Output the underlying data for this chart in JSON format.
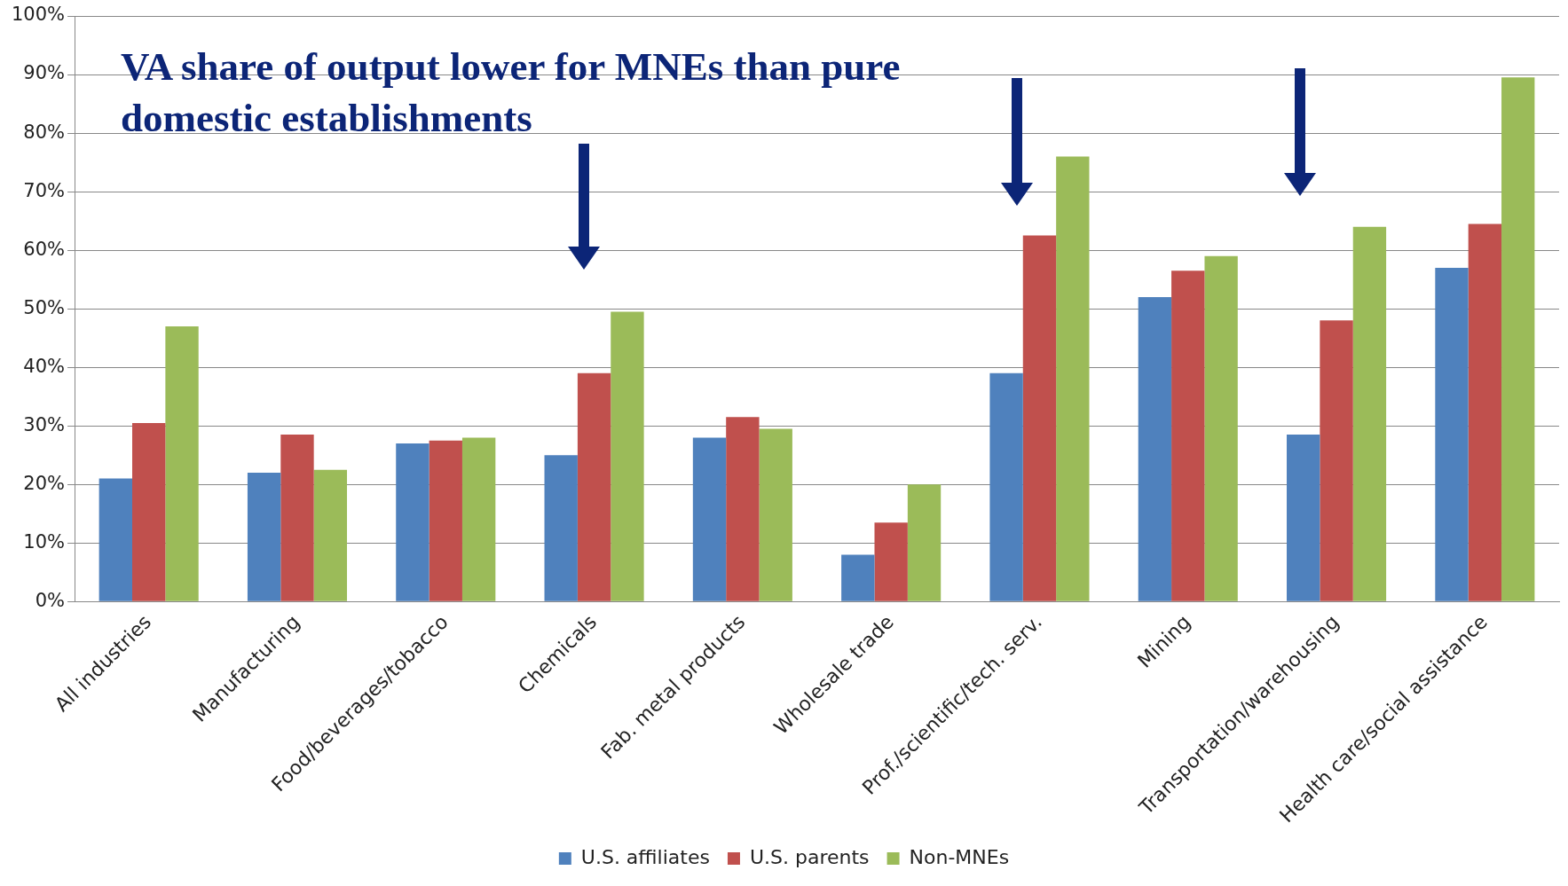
{
  "chart_data": {
    "type": "bar",
    "title": "VA share of output lower for MNEs than pure domestic establishments",
    "categories": [
      "All industries",
      "Manufacturing",
      "Food/beverages/tobacco",
      "Chemicals",
      "Fab. metal products",
      "Wholesale trade",
      "Prof./scientific/tech. serv.",
      "Mining",
      "Transportation/warehousing",
      "Health care/social assistance"
    ],
    "series": [
      {
        "name": "U.S. affiliates",
        "color": "#4f81bd",
        "values": [
          21,
          22,
          27,
          25,
          28,
          8,
          39,
          52,
          28.5,
          57
        ]
      },
      {
        "name": "U.S. parents",
        "color": "#c0504d",
        "values": [
          30.5,
          28.5,
          27.5,
          39,
          31.5,
          13.5,
          62.5,
          56.5,
          48,
          64.5
        ]
      },
      {
        "name": "Non-MNEs",
        "color": "#9bbb59",
        "values": [
          47,
          22.5,
          28,
          49.5,
          29.5,
          20,
          76,
          59,
          64,
          89.5
        ]
      }
    ],
    "ylim": [
      0,
      100
    ],
    "yticks": [
      {
        "value": 0,
        "label": "0%"
      },
      {
        "value": 10,
        "label": "10%"
      },
      {
        "value": 20,
        "label": "20%"
      },
      {
        "value": 30,
        "label": "30%"
      },
      {
        "value": 40,
        "label": "40%"
      },
      {
        "value": 50,
        "label": "50%"
      },
      {
        "value": 60,
        "label": "60%"
      },
      {
        "value": 70,
        "label": "70%"
      },
      {
        "value": 80,
        "label": "80%"
      },
      {
        "value": 90,
        "label": "90%"
      },
      {
        "value": 100,
        "label": "100%"
      }
    ],
    "grid": "y",
    "legend": "bottom"
  }
}
